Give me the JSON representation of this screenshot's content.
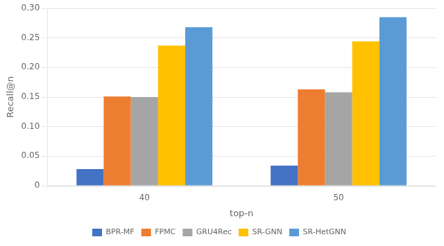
{
  "chart_data": {
    "type": "bar",
    "categories": [
      "40",
      "50"
    ],
    "series": [
      {
        "name": "BPR-MF",
        "color": "#4472C4",
        "values": [
          0.028,
          0.034
        ]
      },
      {
        "name": "FPMC",
        "color": "#ED7D31",
        "values": [
          0.151,
          0.163
        ]
      },
      {
        "name": "GRU4Rec",
        "color": "#A5A5A5",
        "values": [
          0.15,
          0.158
        ]
      },
      {
        "name": "SR-GNN",
        "color": "#FFC000",
        "values": [
          0.237,
          0.244
        ]
      },
      {
        "name": "SR-HetGNN",
        "color": "#5B9BD5",
        "values": [
          0.268,
          0.285
        ]
      }
    ],
    "x_label": "top-n",
    "y_label": "Recall@n",
    "ylim": [
      0,
      0.3
    ],
    "yticks": [
      0,
      0.05,
      {
        "value": 0.1,
        "label": "0.10"
      },
      0.15,
      {
        "value": 0.2,
        "label": "0.20"
      },
      0.25,
      {
        "value": 0.3,
        "label": "0.30"
      }
    ],
    "grid": true,
    "legend": "bottom"
  }
}
